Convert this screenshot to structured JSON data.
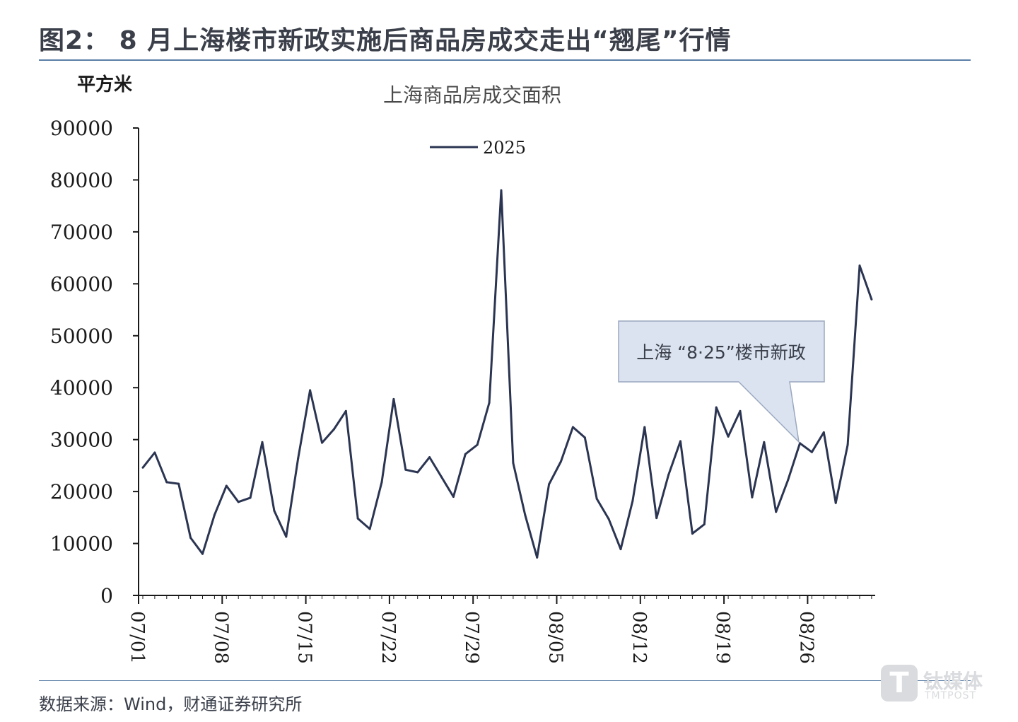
{
  "figure": {
    "title": "图2： 8 月上海楼市新政实施后商品房成交走出“翘尾”行情",
    "source": "数据来源：Wind，财通证券研究所"
  },
  "watermark": {
    "glyph": "T",
    "text": "钛媒体",
    "sub": "TMTPOST"
  },
  "colors": {
    "line": "#2b3552",
    "axis": "#1a1a1a",
    "rule": "#5b7fa8",
    "callout_fill": "#dbe3f1",
    "callout_stroke": "#9aa8bf"
  },
  "chart_data": {
    "type": "line",
    "title": "上海商品房成交面积",
    "unit_label": "平方米",
    "ylim": [
      0,
      90000
    ],
    "y_ticks": [
      "0",
      "10000",
      "20000",
      "30000",
      "40000",
      "50000",
      "60000",
      "70000",
      "80000",
      "90000"
    ],
    "x_tick_labels": [
      "07/01",
      "07/08",
      "07/15",
      "07/22",
      "07/29",
      "08/05",
      "08/12",
      "08/19",
      "08/26"
    ],
    "legend": {
      "placement": "top-center"
    },
    "grid": false,
    "series": [
      {
        "name": "2025",
        "values": [
          24600,
          27500,
          21800,
          21500,
          11100,
          8000,
          15500,
          21100,
          18000,
          18800,
          29500,
          16300,
          11300,
          26400,
          39500,
          29400,
          32000,
          35500,
          14800,
          12800,
          21800,
          37800,
          24200,
          23700,
          26600,
          22800,
          19000,
          27200,
          29000,
          37100,
          78000,
          25500,
          15500,
          7300,
          21400,
          25800,
          32400,
          30400,
          18600,
          14700,
          8900,
          18200,
          32400,
          14900,
          23200,
          29700,
          11900,
          13700,
          36200,
          30600,
          35500,
          18900,
          29500,
          16100,
          22200,
          29300,
          27600,
          31400,
          17800,
          29000,
          63500,
          57000
        ]
      }
    ],
    "annotation": "上海 “8·25”楼市新政"
  }
}
